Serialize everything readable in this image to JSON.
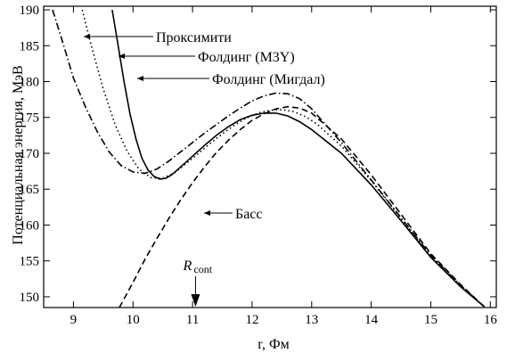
{
  "chart_data": {
    "type": "line",
    "title": "",
    "xlabel": "r, Фм",
    "ylabel": "Потенциальная энергия, МэВ",
    "xlim": [
      8.5,
      16.1
    ],
    "ylim": [
      148.5,
      190.5
    ],
    "xticks": [
      9,
      10,
      11,
      12,
      13,
      14,
      15,
      16
    ],
    "yticks": [
      150,
      155,
      160,
      165,
      170,
      175,
      180,
      185,
      190
    ],
    "grid": false,
    "series": [
      {
        "name": "Проксимити",
        "style": "dashdot",
        "points": [
          [
            8.65,
            190
          ],
          [
            8.8,
            186
          ],
          [
            9.0,
            180.5
          ],
          [
            9.2,
            176.5
          ],
          [
            9.4,
            173
          ],
          [
            9.6,
            170.2
          ],
          [
            9.8,
            168.3
          ],
          [
            10.0,
            167.4
          ],
          [
            10.2,
            167.2
          ],
          [
            10.4,
            167.8
          ],
          [
            10.6,
            168.9
          ],
          [
            10.8,
            170.2
          ],
          [
            11.0,
            171.5
          ],
          [
            11.2,
            172.8
          ],
          [
            11.4,
            174.0
          ],
          [
            11.6,
            175.2
          ],
          [
            11.8,
            176.3
          ],
          [
            12.0,
            177.3
          ],
          [
            12.2,
            178.0
          ],
          [
            12.4,
            178.4
          ],
          [
            12.6,
            178.3
          ],
          [
            12.8,
            177.6
          ],
          [
            13.0,
            176.2
          ],
          [
            13.5,
            171.5
          ],
          [
            14.0,
            166.3
          ],
          [
            14.5,
            161.0
          ],
          [
            15.0,
            155.8
          ],
          [
            15.5,
            151.6
          ],
          [
            15.9,
            148.6
          ]
        ]
      },
      {
        "name": "Фолдинг (M3Y)",
        "style": "dotted",
        "points": [
          [
            9.15,
            190
          ],
          [
            9.3,
            185
          ],
          [
            9.5,
            179
          ],
          [
            9.7,
            174
          ],
          [
            9.9,
            170.3
          ],
          [
            10.1,
            167.8
          ],
          [
            10.3,
            166.6
          ],
          [
            10.5,
            166.5
          ],
          [
            10.7,
            167.3
          ],
          [
            10.9,
            168.6
          ],
          [
            11.1,
            170.0
          ],
          [
            11.3,
            171.4
          ],
          [
            11.5,
            172.7
          ],
          [
            11.7,
            173.9
          ],
          [
            11.9,
            174.9
          ],
          [
            12.1,
            175.6
          ],
          [
            12.3,
            176.0
          ],
          [
            12.5,
            176.1
          ],
          [
            12.7,
            175.8
          ],
          [
            12.9,
            175.1
          ],
          [
            13.1,
            174.0
          ],
          [
            13.5,
            171.0
          ],
          [
            14.0,
            166.2
          ],
          [
            14.5,
            160.9
          ],
          [
            15.0,
            155.7
          ],
          [
            15.5,
            151.5
          ],
          [
            15.9,
            148.6
          ]
        ]
      },
      {
        "name": "Фолдинг (Мигдал)",
        "style": "solid",
        "points": [
          [
            9.65,
            190
          ],
          [
            9.75,
            185
          ],
          [
            9.85,
            180
          ],
          [
            9.95,
            175.5
          ],
          [
            10.05,
            172
          ],
          [
            10.15,
            169.3
          ],
          [
            10.25,
            167.7
          ],
          [
            10.35,
            166.8
          ],
          [
            10.45,
            166.4
          ],
          [
            10.55,
            166.5
          ],
          [
            10.65,
            167
          ],
          [
            10.8,
            168.1
          ],
          [
            11.0,
            169.6
          ],
          [
            11.2,
            171.1
          ],
          [
            11.4,
            172.5
          ],
          [
            11.6,
            173.7
          ],
          [
            11.8,
            174.7
          ],
          [
            12.0,
            175.3
          ],
          [
            12.2,
            175.6
          ],
          [
            12.4,
            175.6
          ],
          [
            12.6,
            175.2
          ],
          [
            12.8,
            174.4
          ],
          [
            13.0,
            173.3
          ],
          [
            13.5,
            170.0
          ],
          [
            14.0,
            165.6
          ],
          [
            14.5,
            160.6
          ],
          [
            15.0,
            155.5
          ],
          [
            15.5,
            151.4
          ],
          [
            15.9,
            148.6
          ]
        ]
      },
      {
        "name": "Басс",
        "style": "dashed",
        "points": [
          [
            9.77,
            148.5
          ],
          [
            10.0,
            152
          ],
          [
            10.2,
            155.2
          ],
          [
            10.4,
            158.1
          ],
          [
            10.6,
            160.9
          ],
          [
            10.8,
            163.5
          ],
          [
            11.0,
            165.9
          ],
          [
            11.2,
            168.1
          ],
          [
            11.4,
            170.1
          ],
          [
            11.6,
            171.8
          ],
          [
            11.8,
            173.3
          ],
          [
            12.0,
            174.6
          ],
          [
            12.2,
            175.5
          ],
          [
            12.4,
            176.2
          ],
          [
            12.6,
            176.5
          ],
          [
            12.8,
            176.3
          ],
          [
            13.0,
            175.6
          ],
          [
            13.5,
            172.0
          ],
          [
            14.0,
            167.0
          ],
          [
            14.5,
            161.5
          ],
          [
            15.0,
            156.0
          ],
          [
            15.5,
            151.7
          ],
          [
            15.9,
            148.6
          ]
        ]
      }
    ],
    "annotations": [
      {
        "label": "Проксимити",
        "series": "Проксимити"
      },
      {
        "label": "Фолдинг (M3Y)",
        "series": "Фолдинг (M3Y)"
      },
      {
        "label": "Фолдинг (Мигдал)",
        "series": "Фолдинг (Мигдал)"
      },
      {
        "label": "Басс",
        "series": "Басс"
      }
    ],
    "marker": {
      "label": "R",
      "subscript": "cont",
      "x": 11.05
    }
  }
}
